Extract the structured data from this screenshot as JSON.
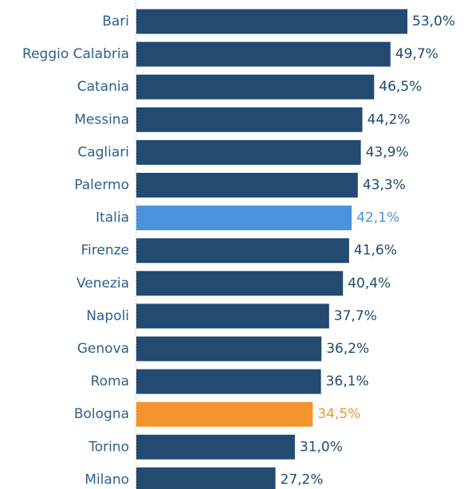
{
  "chart_data": {
    "type": "bar",
    "orientation": "horizontal",
    "categories": [
      "Bari",
      "Reggio Calabria",
      "Catania",
      "Messina",
      "Cagliari",
      "Palermo",
      "Italia",
      "Firenze",
      "Venezia",
      "Napoli",
      "Genova",
      "Roma",
      "Bologna",
      "Torino",
      "Milano"
    ],
    "values": [
      53.0,
      49.7,
      46.5,
      44.2,
      43.9,
      43.3,
      42.1,
      41.6,
      40.4,
      37.7,
      36.2,
      36.1,
      34.5,
      31.0,
      27.2
    ],
    "value_labels": [
      "53,0%",
      "49,7%",
      "46,5%",
      "44,2%",
      "43,9%",
      "43,3%",
      "42,1%",
      "41,6%",
      "40,4%",
      "37,7%",
      "36,2%",
      "36,1%",
      "34,5%",
      "31,0%",
      "27,2%"
    ],
    "unit": "%",
    "xlim": [
      0,
      53.0
    ],
    "grid": false,
    "axis_line": "dotted",
    "colors": {
      "default_bar": "#234a70",
      "default_value_text": "#234a70",
      "category_text": "#2d5f8e",
      "highlight": {
        "Italia": "#4a93dc",
        "Bologna": "#f2952d"
      }
    }
  }
}
